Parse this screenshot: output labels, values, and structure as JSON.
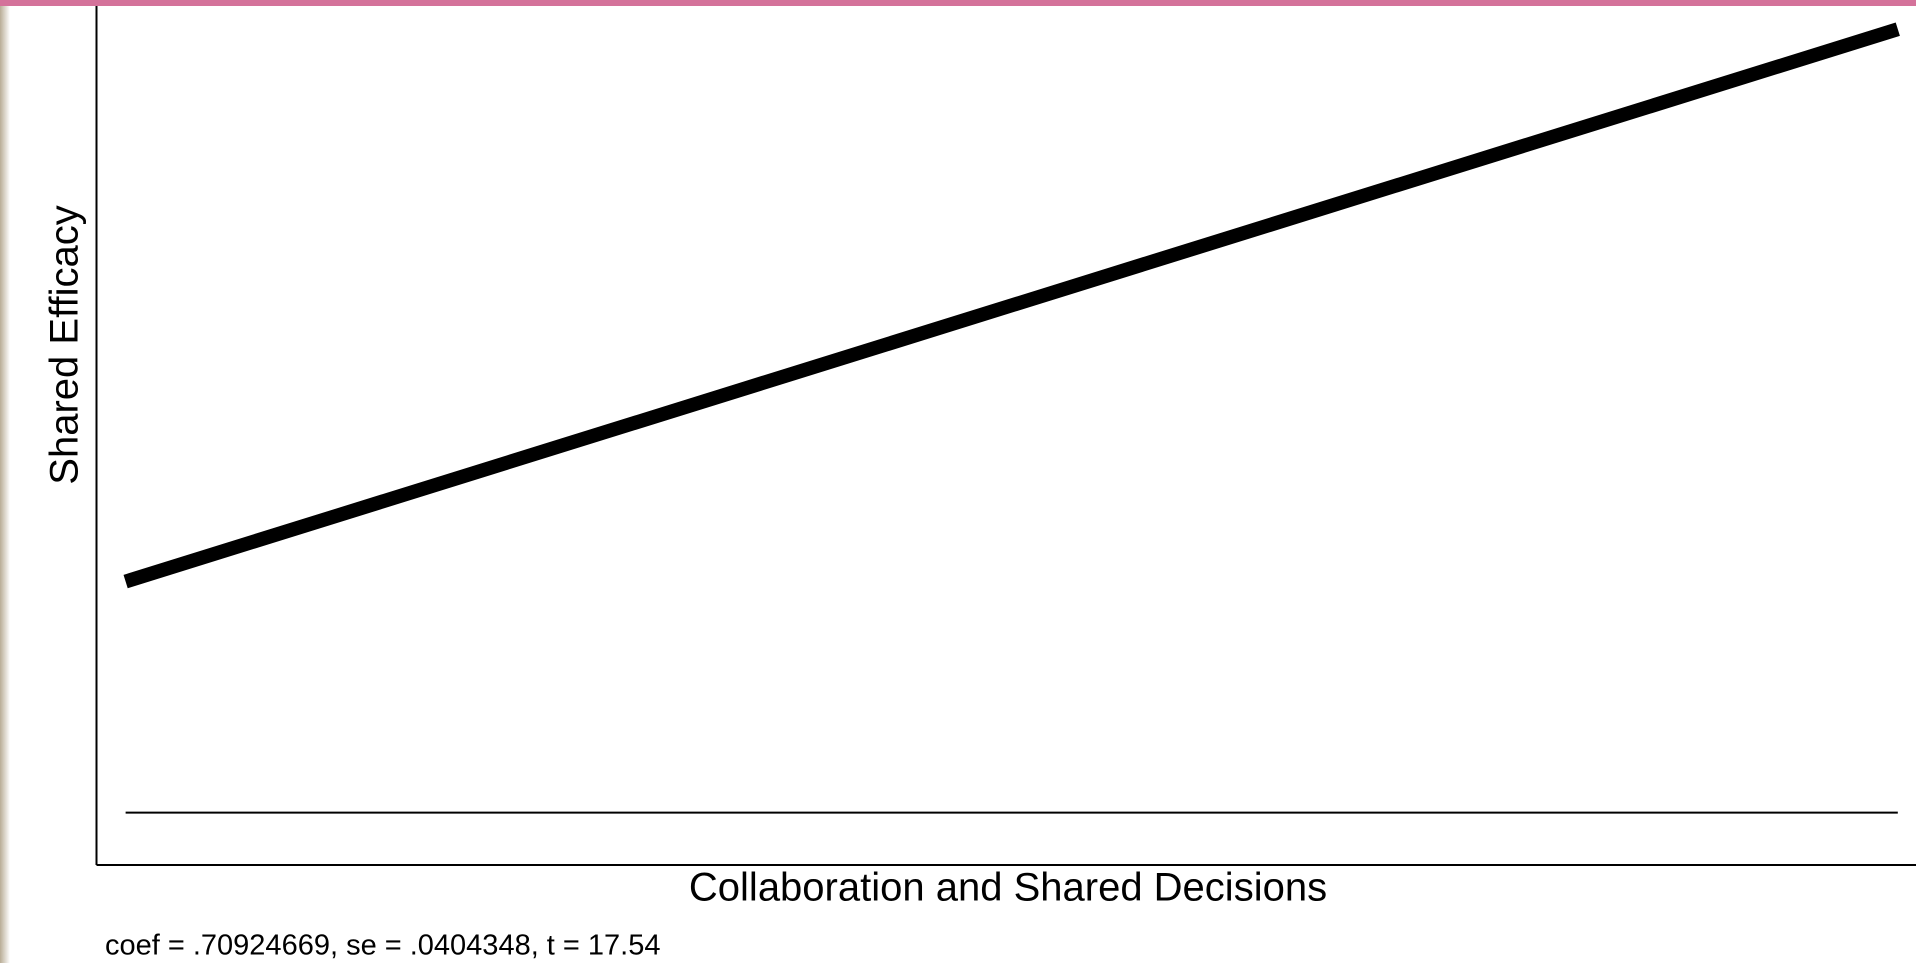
{
  "chart_data": {
    "type": "line",
    "y_label": "Shared Efficacy",
    "x_label": "Collaboration and Shared Decisions",
    "note": "coef = .70924669, se = .0404348, t = 17.54",
    "x": [
      0.016,
      0.99
    ],
    "xlim": [
      0,
      1
    ],
    "ylim": [
      0,
      1
    ],
    "series": [
      {
        "color": "#000000",
        "values": [
          0.33,
          0.973
        ]
      },
      {
        "color": "#000000",
        "values": [
          0.061,
          0.061
        ]
      }
    ]
  }
}
